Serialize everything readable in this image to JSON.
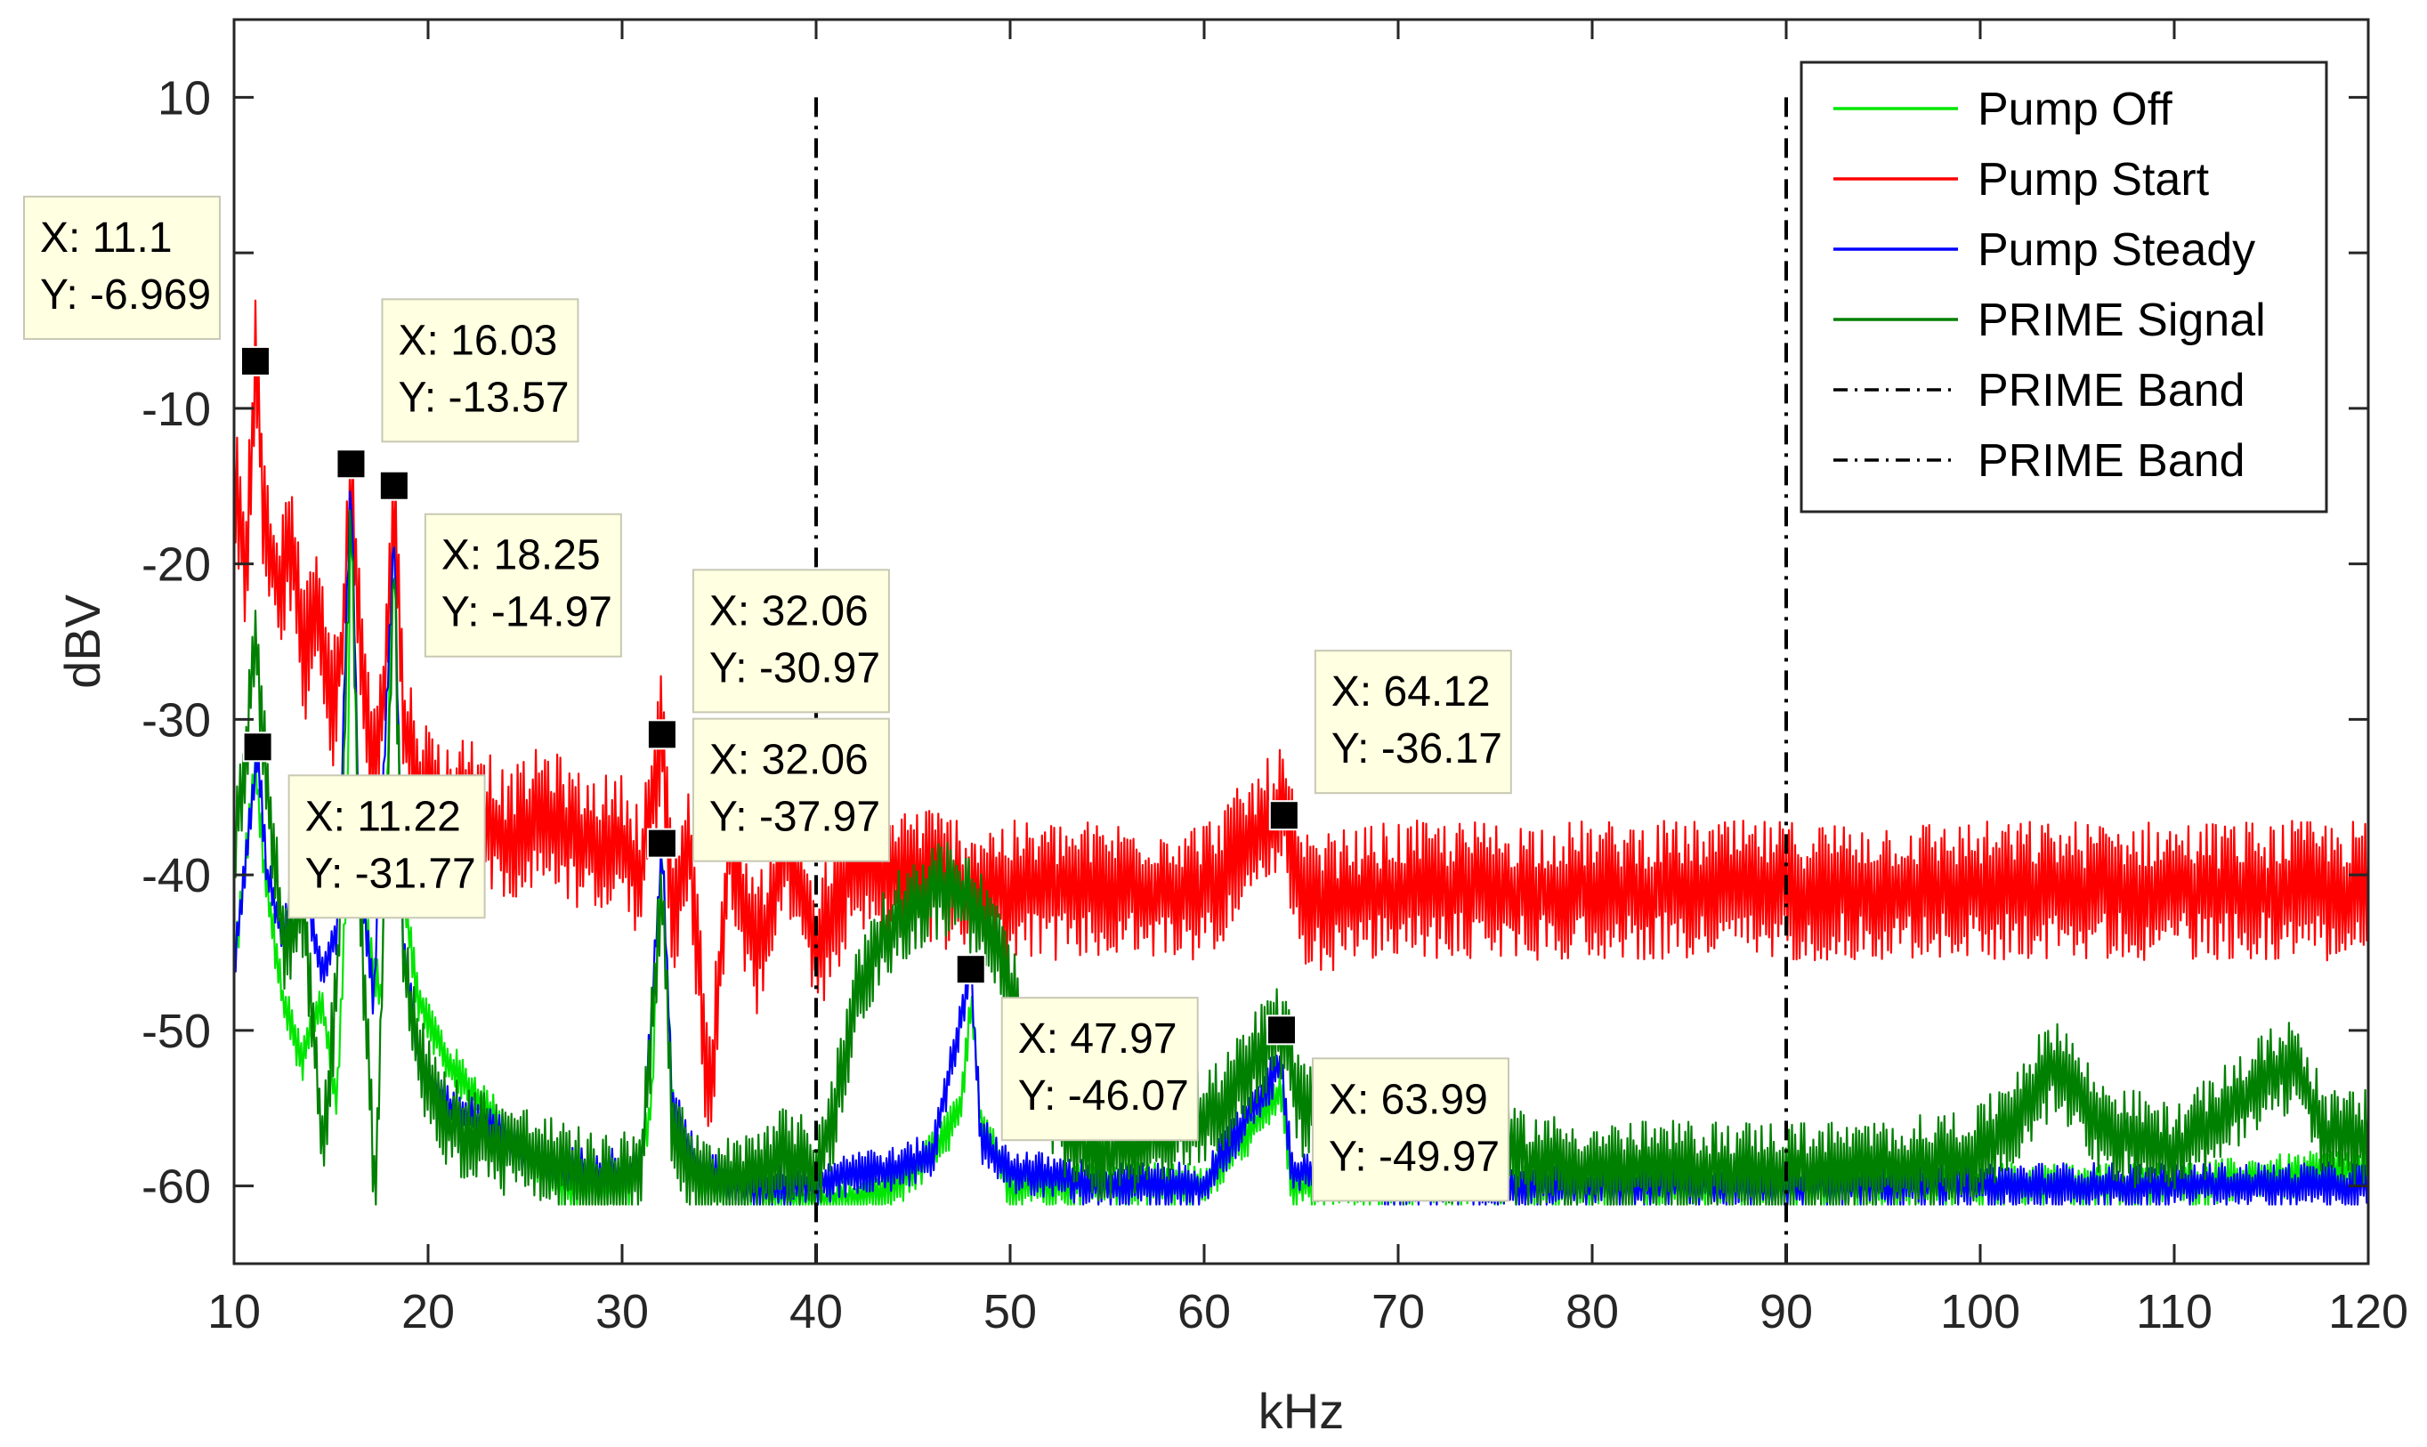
{
  "chart_data": {
    "type": "line",
    "title": "",
    "xlabel": "kHz",
    "ylabel": "dBV",
    "xlim": [
      10,
      120
    ],
    "ylim": [
      -65,
      15
    ],
    "xticks": [
      10,
      20,
      30,
      40,
      50,
      60,
      70,
      80,
      90,
      100,
      110,
      120
    ],
    "yticks": [
      -60,
      -50,
      -40,
      -30,
      -20,
      -10,
      10
    ],
    "grid": false,
    "legend_position": "top-right",
    "series": [
      {
        "name": "Pump Off",
        "color": "#00e600",
        "points": [
          [
            10,
            -46
          ],
          [
            10.5,
            -40
          ],
          [
            11.1,
            -33
          ],
          [
            11.6,
            -40
          ],
          [
            12.5,
            -48
          ],
          [
            13.5,
            -52
          ],
          [
            14.5,
            -48
          ],
          [
            15.3,
            -55
          ],
          [
            15.8,
            -40
          ],
          [
            16.03,
            -15
          ],
          [
            16.4,
            -38
          ],
          [
            17,
            -45
          ],
          [
            17.6,
            -48
          ],
          [
            18.25,
            -16
          ],
          [
            18.6,
            -40
          ],
          [
            19.5,
            -48
          ],
          [
            21,
            -52
          ],
          [
            23,
            -55
          ],
          [
            25,
            -58
          ],
          [
            27,
            -60
          ],
          [
            29,
            -60
          ],
          [
            30.5,
            -60
          ],
          [
            31.5,
            -55
          ],
          [
            32.06,
            -38
          ],
          [
            32.6,
            -55
          ],
          [
            34,
            -60
          ],
          [
            36,
            -60
          ],
          [
            38,
            -61
          ],
          [
            40,
            -61
          ],
          [
            42,
            -61
          ],
          [
            44,
            -60
          ],
          [
            46,
            -58
          ],
          [
            47.5,
            -55
          ],
          [
            47.97,
            -48
          ],
          [
            48.5,
            -56
          ],
          [
            50,
            -60
          ],
          [
            55,
            -60
          ],
          [
            60,
            -60
          ],
          [
            63.99,
            -54
          ],
          [
            64.5,
            -60
          ],
          [
            70,
            -60
          ],
          [
            80,
            -60
          ],
          [
            90,
            -60
          ],
          [
            100,
            -60
          ],
          [
            110,
            -60
          ],
          [
            120,
            -59
          ]
        ]
      },
      {
        "name": "Pump Start",
        "color": "#ff0000",
        "points": [
          [
            10,
            -14
          ],
          [
            10.6,
            -20
          ],
          [
            11.1,
            -7
          ],
          [
            11.6,
            -18
          ],
          [
            12.3,
            -22
          ],
          [
            13,
            -18
          ],
          [
            13.6,
            -26
          ],
          [
            14.3,
            -22
          ],
          [
            15,
            -30
          ],
          [
            15.6,
            -25
          ],
          [
            16.03,
            -14
          ],
          [
            16.5,
            -26
          ],
          [
            17.2,
            -32
          ],
          [
            17.8,
            -28
          ],
          [
            18.25,
            -15
          ],
          [
            18.7,
            -30
          ],
          [
            19.5,
            -34
          ],
          [
            21,
            -36
          ],
          [
            22.5,
            -35
          ],
          [
            24,
            -38
          ],
          [
            26,
            -36
          ],
          [
            28,
            -38
          ],
          [
            30,
            -38
          ],
          [
            31,
            -40
          ],
          [
            32.06,
            -31
          ],
          [
            32.6,
            -42
          ],
          [
            33.5,
            -38
          ],
          [
            34.5,
            -55
          ],
          [
            35.5,
            -38
          ],
          [
            37,
            -45
          ],
          [
            38.5,
            -38
          ],
          [
            40,
            -45
          ],
          [
            42,
            -39
          ],
          [
            44,
            -40
          ],
          [
            46,
            -40
          ],
          [
            48,
            -41
          ],
          [
            50,
            -41
          ],
          [
            55,
            -41
          ],
          [
            60,
            -41
          ],
          [
            64.12,
            -36
          ],
          [
            65,
            -42
          ],
          [
            70,
            -41
          ],
          [
            75,
            -41
          ],
          [
            80,
            -41
          ],
          [
            85,
            -41
          ],
          [
            90,
            -41
          ],
          [
            95,
            -41
          ],
          [
            100,
            -41
          ],
          [
            105,
            -41
          ],
          [
            110,
            -41
          ],
          [
            115,
            -41
          ],
          [
            120,
            -41
          ]
        ]
      },
      {
        "name": "Pump Steady",
        "color": "#0000ff",
        "points": [
          [
            10,
            -46
          ],
          [
            10.5,
            -40
          ],
          [
            11.22,
            -32
          ],
          [
            11.7,
            -40
          ],
          [
            12.5,
            -44
          ],
          [
            13.5,
            -40
          ],
          [
            14.5,
            -46
          ],
          [
            15.3,
            -44
          ],
          [
            16.03,
            -14
          ],
          [
            16.5,
            -40
          ],
          [
            17.2,
            -48
          ],
          [
            18.25,
            -18
          ],
          [
            18.7,
            -44
          ],
          [
            19.5,
            -52
          ],
          [
            21,
            -55
          ],
          [
            23,
            -56
          ],
          [
            25,
            -58
          ],
          [
            27,
            -59
          ],
          [
            29,
            -59
          ],
          [
            31,
            -59
          ],
          [
            32.06,
            -38
          ],
          [
            32.6,
            -55
          ],
          [
            34,
            -59
          ],
          [
            36,
            -60
          ],
          [
            38,
            -60
          ],
          [
            40,
            -60
          ],
          [
            42,
            -59
          ],
          [
            44,
            -59
          ],
          [
            46,
            -58
          ],
          [
            47.97,
            -46
          ],
          [
            48.5,
            -57
          ],
          [
            50,
            -59
          ],
          [
            55,
            -60
          ],
          [
            60,
            -60
          ],
          [
            63.99,
            -52
          ],
          [
            64.5,
            -59
          ],
          [
            70,
            -60
          ],
          [
            80,
            -60
          ],
          [
            90,
            -60
          ],
          [
            100,
            -60
          ],
          [
            110,
            -60
          ],
          [
            120,
            -60
          ]
        ]
      },
      {
        "name": "PRIME Signal",
        "color": "#008000",
        "points": [
          [
            10,
            -38
          ],
          [
            10.6,
            -32
          ],
          [
            11.1,
            -25
          ],
          [
            11.8,
            -35
          ],
          [
            12.6,
            -45
          ],
          [
            13.6,
            -42
          ],
          [
            14.6,
            -58
          ],
          [
            15.4,
            -45
          ],
          [
            16.03,
            -16
          ],
          [
            16.5,
            -42
          ],
          [
            17.3,
            -61
          ],
          [
            18.25,
            -20
          ],
          [
            18.7,
            -45
          ],
          [
            19.5,
            -52
          ],
          [
            21,
            -56
          ],
          [
            23,
            -57
          ],
          [
            25,
            -58
          ],
          [
            27,
            -59
          ],
          [
            29,
            -60
          ],
          [
            31,
            -59
          ],
          [
            32.06,
            -40
          ],
          [
            32.6,
            -57
          ],
          [
            34,
            -60
          ],
          [
            36,
            -60
          ],
          [
            38,
            -58
          ],
          [
            40,
            -59
          ],
          [
            41,
            -55
          ],
          [
            42,
            -48
          ],
          [
            43,
            -45
          ],
          [
            44,
            -43
          ],
          [
            45,
            -42
          ],
          [
            46,
            -41
          ],
          [
            47,
            -41
          ],
          [
            48,
            -42
          ],
          [
            49,
            -44
          ],
          [
            50,
            -47
          ],
          [
            51,
            -52
          ],
          [
            53,
            -57
          ],
          [
            55,
            -58
          ],
          [
            57,
            -57
          ],
          [
            59,
            -56
          ],
          [
            61,
            -55
          ],
          [
            62.5,
            -52
          ],
          [
            63.99,
            -50
          ],
          [
            65,
            -55
          ],
          [
            67,
            -55
          ],
          [
            70,
            -58
          ],
          [
            75,
            -58
          ],
          [
            80,
            -59
          ],
          [
            85,
            -59
          ],
          [
            90,
            -59
          ],
          [
            95,
            -59
          ],
          [
            100,
            -58
          ],
          [
            104,
            -52
          ],
          [
            106,
            -56
          ],
          [
            110,
            -58
          ],
          [
            113,
            -55
          ],
          [
            116,
            -52
          ],
          [
            118,
            -57
          ],
          [
            120,
            -57
          ]
        ]
      },
      {
        "name": "PRIME Band",
        "color": "#000000",
        "style": "dash-dot",
        "x": 40
      },
      {
        "name": "PRIME Band",
        "color": "#000000",
        "style": "dash-dot",
        "x": 90
      }
    ],
    "annotations": [
      {
        "x": 11.1,
        "y": -6.969,
        "lines": [
          "X: 11.1",
          "Y: -6.969"
        ],
        "pos": "left"
      },
      {
        "x": 16.03,
        "y": -13.57,
        "lines": [
          "X: 16.03",
          "Y: -13.57"
        ],
        "pos": "above-right"
      },
      {
        "x": 18.25,
        "y": -14.97,
        "lines": [
          "X: 18.25",
          "Y: -14.97"
        ],
        "pos": "below-right"
      },
      {
        "x": 11.22,
        "y": -31.77,
        "lines": [
          "X: 11.22",
          "Y: -31.77"
        ],
        "pos": "below-right"
      },
      {
        "x": 32.06,
        "y": -37.97,
        "lines": [
          "X: 32.06",
          "Y: -37.97"
        ],
        "pos": "right"
      },
      {
        "x": 32.06,
        "y": -30.97,
        "lines": [
          "X: 32.06",
          "Y: -30.97"
        ],
        "pos": "above-right"
      },
      {
        "x": 64.12,
        "y": -36.17,
        "lines": [
          "X: 64.12",
          "Y: -36.17"
        ],
        "pos": "above-right"
      },
      {
        "x": 47.97,
        "y": -46.07,
        "lines": [
          "X: 47.97",
          "Y: -46.07"
        ],
        "pos": "below-right"
      },
      {
        "x": 63.99,
        "y": -49.97,
        "lines": [
          "X: 63.99",
          "Y: -49.97"
        ],
        "pos": "below-right"
      }
    ]
  }
}
